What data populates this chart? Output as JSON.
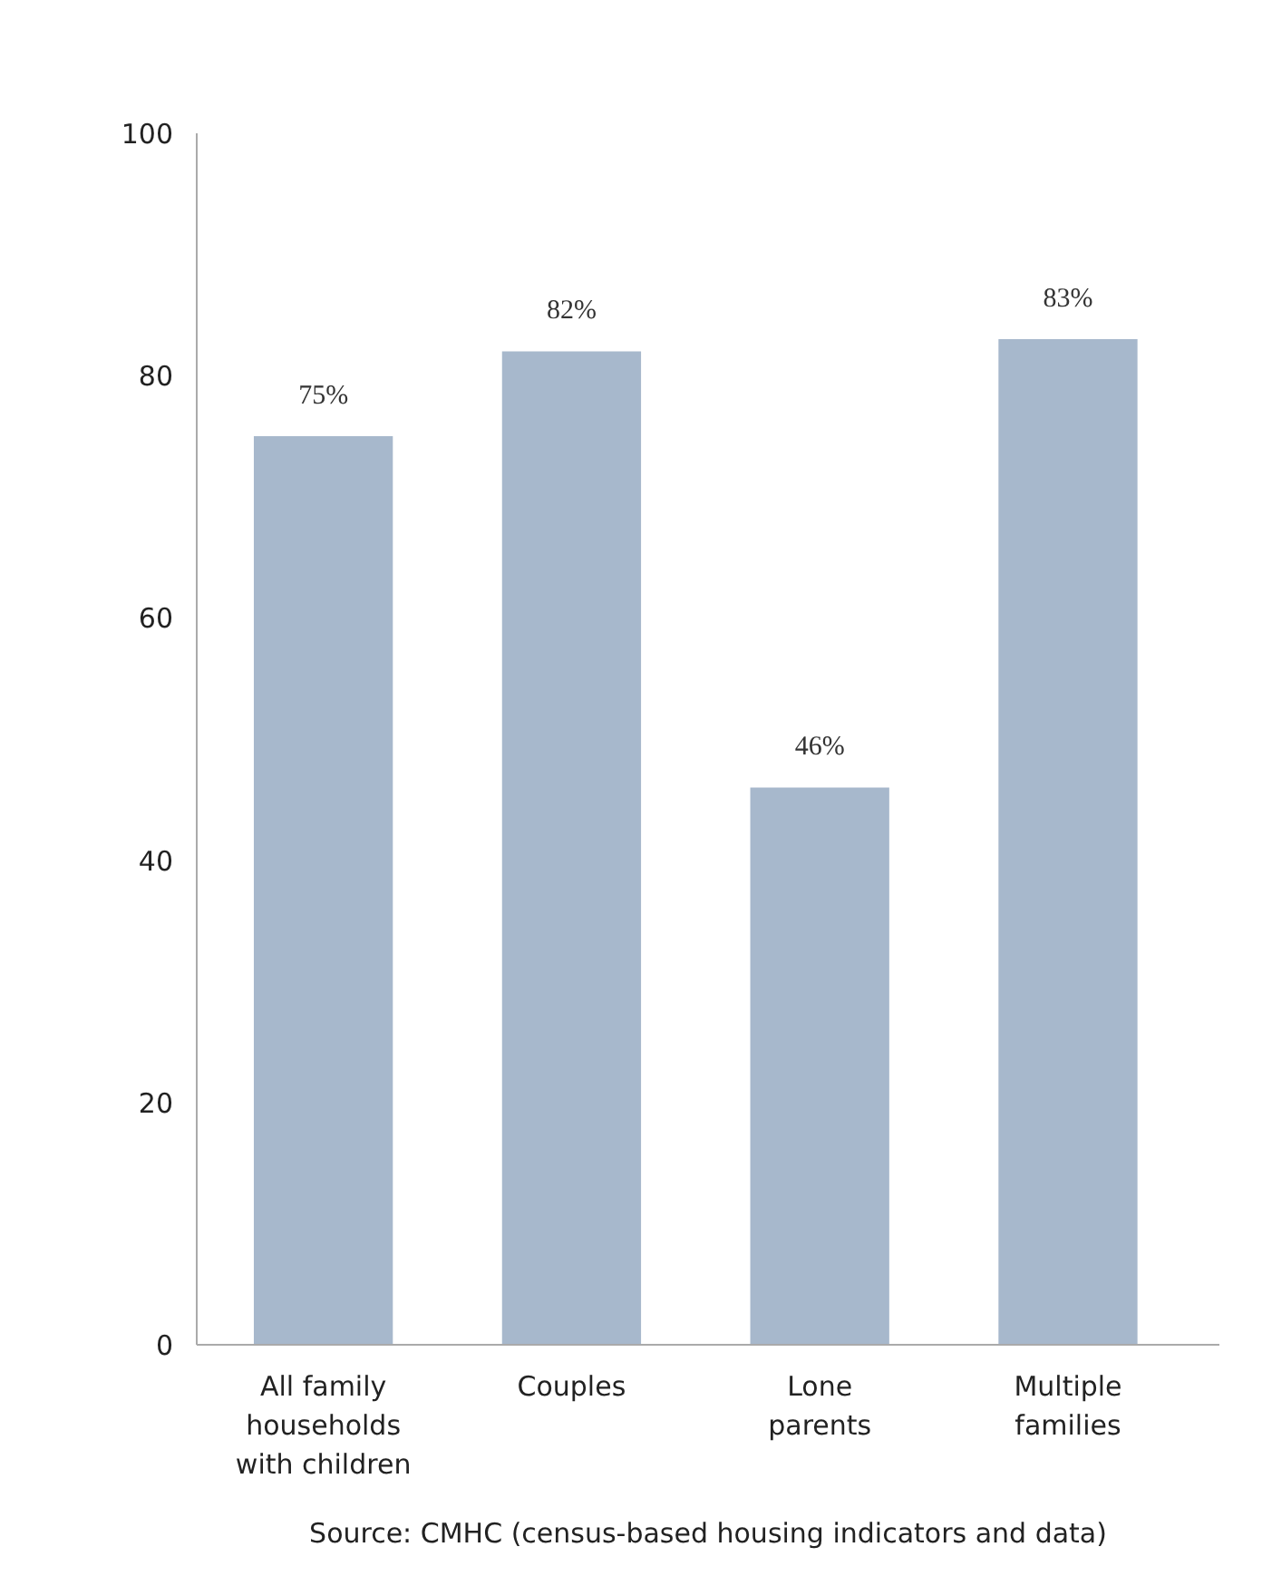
{
  "chart_data": {
    "type": "bar",
    "categories": [
      "All family\nhouseholds\nwith children",
      "Couples",
      "Lone\nparents",
      "Multiple\nfamilies"
    ],
    "values": [
      75,
      82,
      46,
      83
    ],
    "value_labels": [
      "75%",
      "82%",
      "46%",
      "83%"
    ],
    "color": "#a7b8cc",
    "ylim": [
      0,
      100
    ],
    "yticks": [
      0,
      20,
      40,
      60,
      80,
      100
    ],
    "grid": false,
    "annotations": [
      "Source: CMHC (census-based housing indicators and data)"
    ]
  }
}
